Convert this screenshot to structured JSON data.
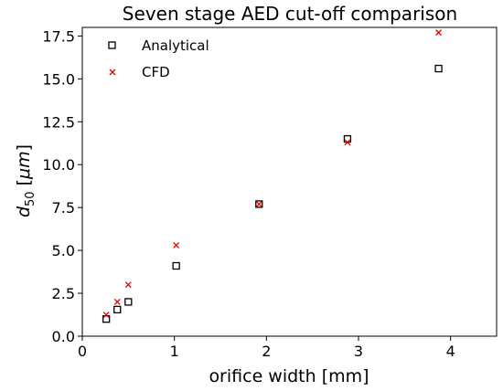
{
  "chart_data": {
    "type": "scatter",
    "title": "Seven stage AED cut-off comparison",
    "xlabel": "orifice width [mm]",
    "ylabel_main": "d",
    "ylabel_sub": "50",
    "ylabel_unit_open": " [",
    "ylabel_unit": "μm",
    "ylabel_unit_close": "]",
    "xlim": [
      0,
      4.5
    ],
    "ylim": [
      0,
      18
    ],
    "xticks": [
      0,
      1,
      2,
      3,
      4
    ],
    "xtick_labels": [
      "0",
      "1",
      "2",
      "3",
      "4"
    ],
    "yticks": [
      0,
      2.5,
      5,
      7.5,
      10,
      12.5,
      15,
      17.5
    ],
    "ytick_labels": [
      "0.0",
      "2.5",
      "5.0",
      "7.5",
      "10.0",
      "12.5",
      "15.0",
      "17.5"
    ],
    "grid": false,
    "legend_position": "upper-left",
    "series": [
      {
        "name": "Analytical",
        "marker": "square-open",
        "color": "#000000",
        "x": [
          0.26,
          0.38,
          0.5,
          1.02,
          1.92,
          2.88,
          3.87
        ],
        "y": [
          1.0,
          1.55,
          2.0,
          4.1,
          7.7,
          11.5,
          15.6
        ]
      },
      {
        "name": "CFD",
        "marker": "x",
        "color": "#e00000",
        "x": [
          0.26,
          0.38,
          0.5,
          1.02,
          1.92,
          2.88,
          3.87
        ],
        "y": [
          1.25,
          2.0,
          3.0,
          5.3,
          7.7,
          11.3,
          17.7
        ]
      }
    ]
  }
}
